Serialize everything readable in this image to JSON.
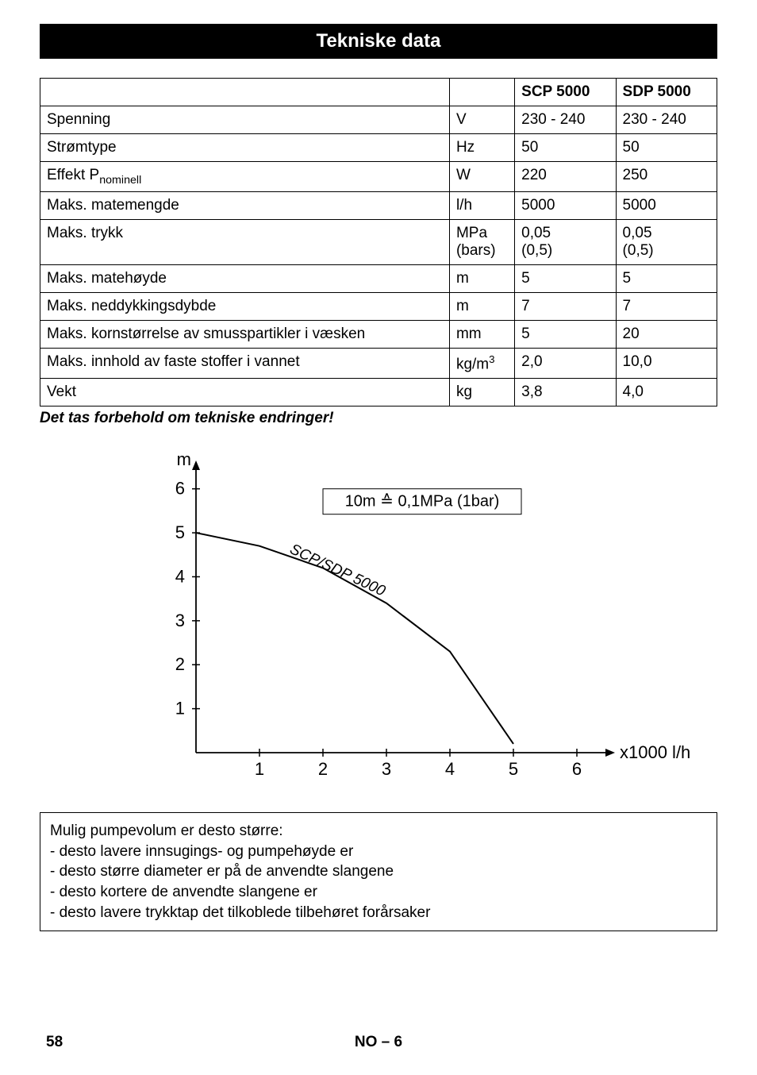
{
  "title": "Tekniske data",
  "table": {
    "headers": [
      "",
      "",
      "SCP 5000",
      "SDP 5000"
    ],
    "rows": [
      [
        "Spenning",
        "V",
        "230 - 240",
        "230 - 240"
      ],
      [
        "Strømtype",
        "Hz",
        "50",
        "50"
      ],
      [
        "Effekt P",
        "W",
        "220",
        "250"
      ],
      [
        "Maks. matemengde",
        "l/h",
        "5000",
        "5000"
      ],
      [
        "Maks. trykk",
        "MPa\n(bars)",
        "0,05\n(0,5)",
        "0,05\n(0,5)"
      ],
      [
        "Maks. matehøyde",
        "m",
        "5",
        "5"
      ],
      [
        "Maks. neddykkingsdybde",
        "m",
        "7",
        "7"
      ],
      [
        "Maks. kornstørrelse av smusspartikler i væsken",
        "mm",
        "5",
        "20"
      ],
      [
        "Maks. innhold av faste stoffer i vannet",
        "kg/m",
        "2,0",
        "10,0"
      ],
      [
        "Vekt",
        "kg",
        "3,8",
        "4,0"
      ]
    ],
    "effekt_sub": "nominell",
    "kg_sup": "3"
  },
  "subnote": "Det tas forbehold om tekniske endringer!",
  "chart": {
    "type": "line",
    "y_label": "m",
    "x_label": "x1000 l/h",
    "legend_box": "10m ≙ 0,1MPa (1bar)",
    "curve_label": "SCP/SDP 5000",
    "xlim": [
      0,
      6.5
    ],
    "ylim": [
      0,
      6.5
    ],
    "x_ticks": [
      1,
      2,
      3,
      4,
      5,
      6
    ],
    "y_ticks": [
      1,
      2,
      3,
      4,
      5,
      6
    ],
    "curve_points": [
      [
        0,
        5.0
      ],
      [
        1,
        4.7
      ],
      [
        2,
        4.2
      ],
      [
        3,
        3.4
      ],
      [
        4,
        2.3
      ],
      [
        5,
        0.2
      ]
    ],
    "colors": {
      "background": "#ffffff",
      "axis": "#000000",
      "curve": "#000000",
      "text": "#000000"
    },
    "line_width": 2,
    "axis_width": 1.8,
    "font_size_axis": 22,
    "font_size_label": 22
  },
  "info_box": {
    "heading": "Mulig pumpevolum er desto større:",
    "lines": [
      "- desto lavere innsugings- og pumpehøyde er",
      "- desto større diameter er på de anvendte slangene",
      "- desto kortere de anvendte slangene er",
      "- desto lavere trykktap det tilkoblede tilbehøret forårsaker"
    ]
  },
  "footer": {
    "page": "58",
    "center": "NO – 6"
  }
}
